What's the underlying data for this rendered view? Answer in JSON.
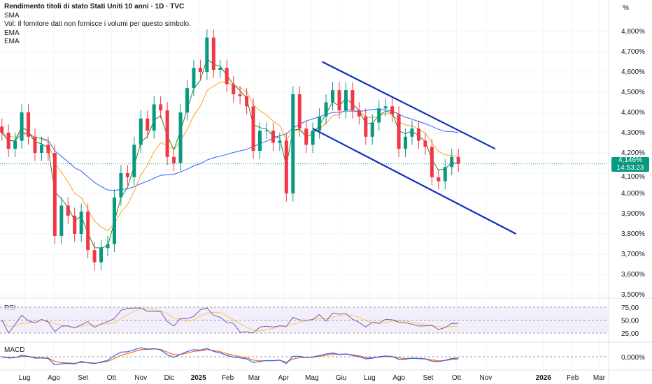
{
  "legend": {
    "title": "Rendimento titoli di stato Stati Uniti 10 anni · 1D · TVC",
    "sma": "SMA",
    "vol": "Vol: Il fornitore dati non fornisce i volumi per questo simbolo.",
    "ema1": "EMA",
    "ema2": "EMA"
  },
  "unit_label": "%",
  "current_price": {
    "value": "4,146%",
    "countdown": "14:53:23"
  },
  "colors": {
    "up": "#089981",
    "down": "#f23645",
    "sma": "#2962ff",
    "ema_slow": "#f5a623",
    "ema_fast": "#2e7d32",
    "channel": "#0d2fbf",
    "rsi": "#7e57c2",
    "rsi_ma": "#f1d36b",
    "macd": "#2962ff",
    "signal": "#ff6d00",
    "price_tag": "#089981"
  },
  "rsi_pane": {
    "label": "RSI",
    "ticks": [
      "75,00",
      "50,00",
      "25,00"
    ]
  },
  "macd_pane": {
    "label": "MACD",
    "ticks": [
      "0,000%"
    ]
  },
  "chart_data": {
    "type": "candlestick",
    "title": "Rendimento titoli di stato Stati Uniti 10 anni · 1D · TVC",
    "ylabel": "%",
    "ylim": [
      3.5,
      4.8
    ],
    "xlim": [
      "2024-06-05",
      "2026-03-11"
    ],
    "grid": true,
    "y_ticks": [
      "4,800%",
      "4,700%",
      "4,600%",
      "4,500%",
      "4,400%",
      "4,300%",
      "4,200%",
      "4,100%",
      "4,000%",
      "3,900%",
      "3,800%",
      "3,700%",
      "3,600%",
      "3,500%"
    ],
    "x_ticks": [
      {
        "label": "Lug",
        "date": "2024-07-01"
      },
      {
        "label": "Ago",
        "date": "2024-08-01"
      },
      {
        "label": "Set",
        "date": "2024-09-01"
      },
      {
        "label": "Ott",
        "date": "2024-10-01"
      },
      {
        "label": "Nov",
        "date": "2024-11-01"
      },
      {
        "label": "Dic",
        "date": "2024-12-01"
      },
      {
        "label": "2025",
        "date": "2025-01-01"
      },
      {
        "label": "Feb",
        "date": "2025-02-01"
      },
      {
        "label": "Mar",
        "date": "2025-03-01"
      },
      {
        "label": "Apr",
        "date": "2025-04-01"
      },
      {
        "label": "Mag",
        "date": "2025-05-01"
      },
      {
        "label": "Giu",
        "date": "2025-06-01"
      },
      {
        "label": "Lug",
        "date": "2025-07-01"
      },
      {
        "label": "Ago",
        "date": "2025-08-01"
      },
      {
        "label": "Set",
        "date": "2025-09-01"
      },
      {
        "label": "Ott",
        "date": "2025-10-01"
      },
      {
        "label": "Nov",
        "date": "2025-11-01"
      },
      {
        "label": "2026",
        "date": "2026-01-01"
      },
      {
        "label": "Feb",
        "date": "2026-02-01"
      },
      {
        "label": "Mar",
        "date": "2026-03-01"
      }
    ],
    "series": {
      "dates": [
        "2024-06-07",
        "2024-06-14",
        "2024-06-21",
        "2024-06-28",
        "2024-07-05",
        "2024-07-12",
        "2024-07-19",
        "2024-07-26",
        "2024-08-02",
        "2024-08-09",
        "2024-08-16",
        "2024-08-23",
        "2024-08-30",
        "2024-09-06",
        "2024-09-13",
        "2024-09-20",
        "2024-09-27",
        "2024-10-04",
        "2024-10-11",
        "2024-10-18",
        "2024-10-25",
        "2024-11-01",
        "2024-11-08",
        "2024-11-15",
        "2024-11-22",
        "2024-11-29",
        "2024-12-06",
        "2024-12-13",
        "2024-12-20",
        "2024-12-27",
        "2025-01-03",
        "2025-01-10",
        "2025-01-17",
        "2025-01-24",
        "2025-01-31",
        "2025-02-07",
        "2025-02-14",
        "2025-02-21",
        "2025-02-28",
        "2025-03-07",
        "2025-03-14",
        "2025-03-21",
        "2025-03-28",
        "2025-04-04",
        "2025-04-11",
        "2025-04-18",
        "2025-04-25",
        "2025-05-02",
        "2025-05-09",
        "2025-05-16",
        "2025-05-23",
        "2025-05-30",
        "2025-06-06",
        "2025-06-13",
        "2025-06-20",
        "2025-06-27",
        "2025-07-04",
        "2025-07-11",
        "2025-07-18",
        "2025-07-25",
        "2025-08-01",
        "2025-08-08",
        "2025-08-15",
        "2025-08-22",
        "2025-08-29",
        "2025-09-05",
        "2025-09-12",
        "2025-09-19",
        "2025-09-26",
        "2025-10-03"
      ],
      "close": [
        4.3,
        4.22,
        4.26,
        4.4,
        4.28,
        4.2,
        4.24,
        4.2,
        3.79,
        3.94,
        3.89,
        3.8,
        3.91,
        3.72,
        3.66,
        3.73,
        3.75,
        3.98,
        4.1,
        4.08,
        4.24,
        4.37,
        4.31,
        4.44,
        4.41,
        4.18,
        4.15,
        4.4,
        4.52,
        4.62,
        4.6,
        4.77,
        4.61,
        4.62,
        4.54,
        4.49,
        4.48,
        4.43,
        4.21,
        4.31,
        4.31,
        4.25,
        4.26,
        4.0,
        4.49,
        4.32,
        4.24,
        4.31,
        4.38,
        4.45,
        4.51,
        4.41,
        4.51,
        4.41,
        4.38,
        4.28,
        4.35,
        4.42,
        4.43,
        4.39,
        4.22,
        4.28,
        4.32,
        4.26,
        4.23,
        4.08,
        4.06,
        4.13,
        4.18,
        4.146
      ]
    },
    "annotations": [
      {
        "type": "trendline",
        "name": "channel-upper",
        "from": {
          "date": "2025-05-12",
          "value": 4.65
        },
        "to": {
          "date": "2025-11-11",
          "value": 4.22
        }
      },
      {
        "type": "trendline",
        "name": "channel-lower",
        "from": {
          "date": "2025-05-02",
          "value": 4.32
        },
        "to": {
          "date": "2025-12-03",
          "value": 3.8
        }
      }
    ]
  }
}
